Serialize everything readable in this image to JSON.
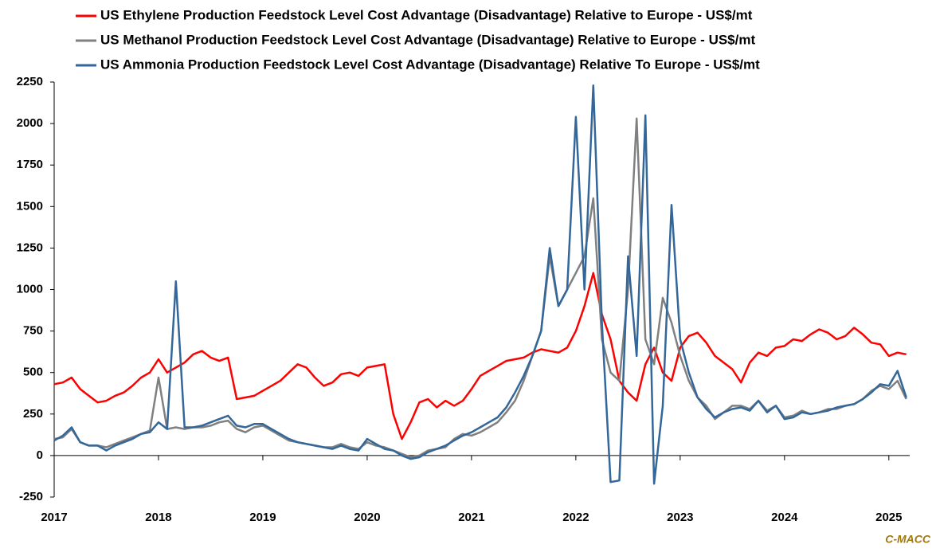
{
  "chart_data": {
    "type": "line",
    "source": "C-MACC",
    "x": [
      2017,
      2017.083,
      2017.167,
      2017.25,
      2017.333,
      2017.417,
      2017.5,
      2017.583,
      2017.667,
      2017.75,
      2017.833,
      2017.917,
      2018,
      2018.083,
      2018.167,
      2018.25,
      2018.333,
      2018.417,
      2018.5,
      2018.583,
      2018.667,
      2018.75,
      2018.833,
      2018.917,
      2019,
      2019.083,
      2019.167,
      2019.25,
      2019.333,
      2019.417,
      2019.5,
      2019.583,
      2019.667,
      2019.75,
      2019.833,
      2019.917,
      2020,
      2020.083,
      2020.167,
      2020.25,
      2020.333,
      2020.417,
      2020.5,
      2020.583,
      2020.667,
      2020.75,
      2020.833,
      2020.917,
      2021,
      2021.083,
      2021.167,
      2021.25,
      2021.333,
      2021.417,
      2021.5,
      2021.583,
      2021.667,
      2021.75,
      2021.833,
      2021.917,
      2022,
      2022.083,
      2022.167,
      2022.25,
      2022.333,
      2022.417,
      2022.5,
      2022.583,
      2022.667,
      2022.75,
      2022.833,
      2022.917,
      2023,
      2023.083,
      2023.167,
      2023.25,
      2023.333,
      2023.417,
      2023.5,
      2023.583,
      2023.667,
      2023.75,
      2023.833,
      2023.917,
      2024,
      2024.083,
      2024.167,
      2024.25,
      2024.333,
      2024.417,
      2024.5,
      2024.583,
      2024.667,
      2024.75,
      2024.833,
      2024.917,
      2025,
      2025.083,
      2025.167
    ],
    "series": [
      {
        "name": "US Ethylene Production Feedstock Level Cost Advantage (Disadvantage) Relative to Europe - US$/mt",
        "color": "#ff0000",
        "values": [
          430,
          440,
          470,
          400,
          360,
          320,
          330,
          360,
          380,
          420,
          470,
          500,
          580,
          500,
          530,
          560,
          610,
          630,
          590,
          570,
          590,
          340,
          350,
          360,
          390,
          420,
          450,
          500,
          550,
          530,
          470,
          420,
          440,
          490,
          500,
          480,
          530,
          540,
          550,
          250,
          100,
          200,
          320,
          340,
          290,
          330,
          300,
          330,
          400,
          480,
          510,
          540,
          570,
          580,
          590,
          620,
          640,
          630,
          620,
          650,
          750,
          900,
          1100,
          850,
          700,
          450,
          380,
          330,
          550,
          650,
          500,
          450,
          650,
          720,
          740,
          680,
          600,
          560,
          520,
          440,
          560,
          620,
          600,
          650,
          660,
          700,
          690,
          730,
          760,
          740,
          700,
          720,
          770,
          730,
          680,
          670,
          600,
          620,
          610
        ]
      },
      {
        "name": "US Methanol Production Feedstock Level Cost Advantage (Disadvantage) Relative to Europe - US$/mt",
        "color": "#808080",
        "values": [
          100,
          110,
          160,
          80,
          60,
          60,
          50,
          70,
          90,
          110,
          130,
          150,
          470,
          160,
          170,
          160,
          170,
          170,
          180,
          200,
          210,
          160,
          140,
          170,
          180,
          150,
          120,
          90,
          80,
          70,
          60,
          50,
          50,
          70,
          50,
          40,
          80,
          60,
          50,
          30,
          10,
          -10,
          0,
          30,
          40,
          50,
          100,
          130,
          120,
          140,
          170,
          200,
          260,
          330,
          450,
          600,
          750,
          1200,
          900,
          1000,
          1100,
          1200,
          1550,
          700,
          500,
          450,
          1000,
          2030,
          700,
          550,
          950,
          800,
          600,
          450,
          350,
          300,
          220,
          260,
          300,
          300,
          280,
          330,
          270,
          300,
          230,
          240,
          270,
          250,
          260,
          280,
          280,
          300,
          310,
          340,
          390,
          420,
          400,
          450,
          340
        ]
      },
      {
        "name": "US Ammonia Production Feedstock Level Cost Advantage (Disadvantage) Relative To Europe - US$/mt",
        "color": "#336699",
        "values": [
          90,
          120,
          170,
          80,
          60,
          60,
          30,
          60,
          80,
          100,
          130,
          140,
          200,
          160,
          1050,
          170,
          170,
          180,
          200,
          220,
          240,
          180,
          170,
          190,
          190,
          160,
          130,
          100,
          80,
          70,
          60,
          50,
          40,
          60,
          40,
          30,
          100,
          70,
          40,
          30,
          0,
          -20,
          -10,
          20,
          40,
          60,
          90,
          120,
          140,
          170,
          200,
          230,
          290,
          380,
          480,
          600,
          750,
          1250,
          900,
          1000,
          2040,
          1000,
          2230,
          800,
          -160,
          -150,
          1200,
          600,
          2050,
          -170,
          300,
          1510,
          700,
          500,
          350,
          280,
          230,
          260,
          280,
          290,
          270,
          330,
          260,
          300,
          220,
          230,
          260,
          250,
          260,
          270,
          290,
          300,
          310,
          340,
          380,
          430,
          420,
          510,
          350
        ]
      }
    ],
    "xlim": [
      2017,
      2025.2
    ],
    "xticks": [
      2017,
      2018,
      2019,
      2020,
      2021,
      2022,
      2023,
      2024,
      2025
    ],
    "ylim": [
      -250,
      2250
    ],
    "yticks": [
      -250,
      0,
      250,
      500,
      750,
      1000,
      1250,
      1500,
      1750,
      2000,
      2250
    ],
    "grid": false
  }
}
